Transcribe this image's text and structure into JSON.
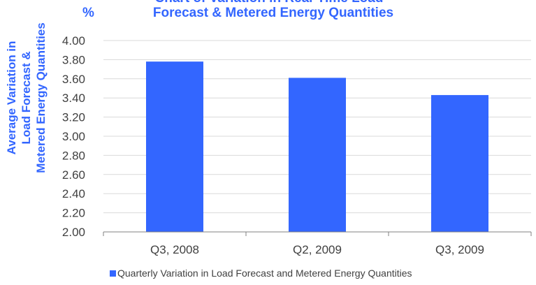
{
  "chart_data": {
    "type": "bar",
    "title_lines": [
      "Chart of Variation in Real-Time Load",
      "Forecast & Metered Energy Quantities"
    ],
    "unit": "%",
    "ylabel_lines": [
      "Average Variation in",
      "Load Forecast &",
      "Metered Energy Quantities"
    ],
    "categories": [
      "Q3, 2008",
      "Q2, 2009",
      "Q3, 2009"
    ],
    "series": [
      {
        "name": "Quarterly Variation in Load Forecast and Metered Energy Quantities",
        "values": [
          3.78,
          3.61,
          3.43
        ],
        "color": "#3366ff"
      }
    ],
    "ylim": [
      2.0,
      4.0
    ],
    "yticks": [
      "2.00",
      "2.20",
      "2.40",
      "2.60",
      "2.80",
      "3.00",
      "3.20",
      "3.40",
      "3.60",
      "3.80",
      "4.00"
    ],
    "grid": true,
    "legend_position": "bottom"
  }
}
